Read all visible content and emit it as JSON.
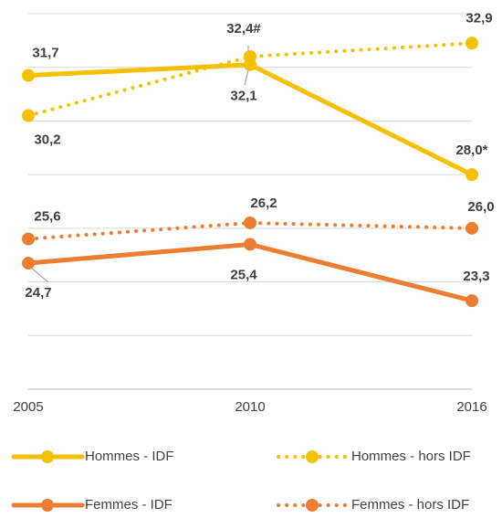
{
  "chart_data": {
    "type": "line",
    "categories": [
      "2005",
      "2010",
      "2016"
    ],
    "ylim": [
      20,
      34
    ],
    "yticks": [
      20,
      22,
      24,
      26,
      28,
      30,
      32,
      34
    ],
    "grid": true,
    "series": [
      {
        "name": "Hommes - IDF",
        "color": "#F5C000",
        "dashed": false,
        "values": [
          31.7,
          32.1,
          28.0
        ],
        "value_labels": [
          "31,7",
          "32,1",
          "28,0*"
        ]
      },
      {
        "name": "Hommes - hors IDF",
        "color": "#F5C000",
        "dashed": true,
        "values": [
          30.2,
          32.4,
          32.9
        ],
        "value_labels": [
          "30,2",
          "32,4#",
          "32,9"
        ]
      },
      {
        "name": "Femmes - IDF",
        "color": "#ED7D31",
        "dashed": false,
        "values": [
          24.7,
          25.4,
          23.3
        ],
        "value_labels": [
          "24,7",
          "25,4",
          "23,3"
        ]
      },
      {
        "name": "Femmes - hors IDF",
        "color": "#ED7D31",
        "dashed": true,
        "values": [
          25.6,
          26.2,
          26.0
        ],
        "value_labels": [
          "25,6",
          "26,2",
          "26,0"
        ]
      }
    ]
  }
}
